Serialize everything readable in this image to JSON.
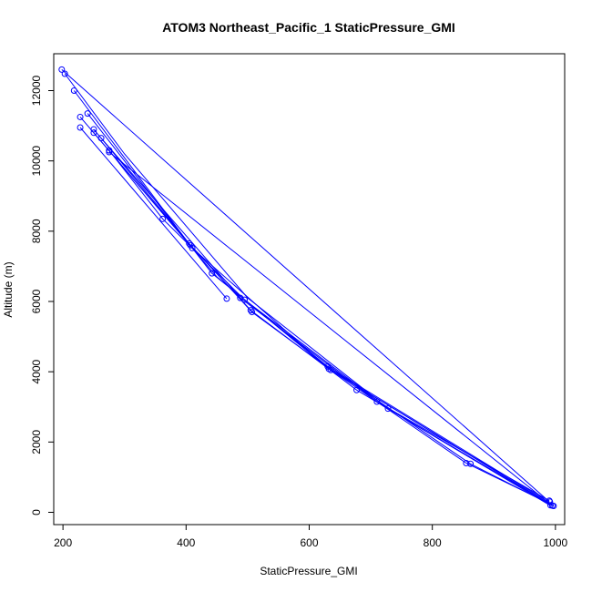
{
  "chart_data": {
    "type": "line",
    "title": "ATOM3 Northeast_Pacific_1 StaticPressure_GMI",
    "xlabel": "StaticPressure_GMI",
    "ylabel": "Altitude (m)",
    "xlim": [
      185,
      1015
    ],
    "ylim": [
      -350,
      13050
    ],
    "xticks": [
      200,
      400,
      600,
      800,
      1000
    ],
    "yticks": [
      0,
      2000,
      4000,
      6000,
      8000,
      10000,
      12000
    ],
    "xtick_labels": [
      "200",
      "400",
      "600",
      "800",
      "1000"
    ],
    "ytick_labels": [
      "0",
      "2000",
      "4000",
      "6000",
      "8000",
      "10000",
      "12000"
    ],
    "grid": false,
    "legend": "none",
    "series_color": "#0000ff",
    "markers": "open-circle",
    "points": [
      {
        "x": 198,
        "y": 12600
      },
      {
        "x": 203,
        "y": 12480
      },
      {
        "x": 218,
        "y": 12000
      },
      {
        "x": 228,
        "y": 11250
      },
      {
        "x": 228,
        "y": 10950
      },
      {
        "x": 240,
        "y": 11350
      },
      {
        "x": 250,
        "y": 10900
      },
      {
        "x": 250,
        "y": 10800
      },
      {
        "x": 262,
        "y": 10650
      },
      {
        "x": 275,
        "y": 10300
      },
      {
        "x": 275,
        "y": 10250
      },
      {
        "x": 362,
        "y": 8350
      },
      {
        "x": 405,
        "y": 7650
      },
      {
        "x": 407,
        "y": 7600
      },
      {
        "x": 410,
        "y": 7520
      },
      {
        "x": 442,
        "y": 6800
      },
      {
        "x": 466,
        "y": 6080
      },
      {
        "x": 488,
        "y": 6100
      },
      {
        "x": 495,
        "y": 6050
      },
      {
        "x": 505,
        "y": 5750
      },
      {
        "x": 507,
        "y": 5700
      },
      {
        "x": 630,
        "y": 4150
      },
      {
        "x": 632,
        "y": 4080
      },
      {
        "x": 635,
        "y": 4050
      },
      {
        "x": 677,
        "y": 3480
      },
      {
        "x": 710,
        "y": 3150
      },
      {
        "x": 728,
        "y": 2950
      },
      {
        "x": 855,
        "y": 1400
      },
      {
        "x": 862,
        "y": 1380
      },
      {
        "x": 990,
        "y": 330
      },
      {
        "x": 991,
        "y": 300
      },
      {
        "x": 992,
        "y": 200
      },
      {
        "x": 995,
        "y": 190
      },
      {
        "x": 997,
        "y": 180
      }
    ],
    "profiles": [
      [
        {
          "x": 203,
          "y": 12480
        },
        {
          "x": 300,
          "y": 10200
        },
        {
          "x": 500,
          "y": 6100
        },
        {
          "x": 700,
          "y": 3350
        },
        {
          "x": 990,
          "y": 250
        }
      ],
      [
        {
          "x": 198,
          "y": 12600
        },
        {
          "x": 990,
          "y": 300
        }
      ],
      [
        {
          "x": 218,
          "y": 12000
        },
        {
          "x": 410,
          "y": 7520
        },
        {
          "x": 632,
          "y": 4080
        },
        {
          "x": 995,
          "y": 190
        }
      ],
      [
        {
          "x": 228,
          "y": 10950
        },
        {
          "x": 466,
          "y": 6080
        }
      ],
      [
        {
          "x": 240,
          "y": 11350
        },
        {
          "x": 442,
          "y": 6800
        },
        {
          "x": 630,
          "y": 4150
        },
        {
          "x": 862,
          "y": 1380
        },
        {
          "x": 997,
          "y": 180
        }
      ],
      [
        {
          "x": 250,
          "y": 10800
        },
        {
          "x": 407,
          "y": 7600
        },
        {
          "x": 505,
          "y": 5750
        },
        {
          "x": 677,
          "y": 3480
        },
        {
          "x": 991,
          "y": 200
        }
      ],
      [
        {
          "x": 262,
          "y": 10650
        },
        {
          "x": 488,
          "y": 6100
        },
        {
          "x": 710,
          "y": 3150
        },
        {
          "x": 990,
          "y": 330
        }
      ],
      [
        {
          "x": 275,
          "y": 10300
        },
        {
          "x": 362,
          "y": 8350
        },
        {
          "x": 495,
          "y": 6050
        },
        {
          "x": 728,
          "y": 2950
        },
        {
          "x": 992,
          "y": 220
        }
      ],
      [
        {
          "x": 250,
          "y": 10900
        },
        {
          "x": 405,
          "y": 7650
        },
        {
          "x": 507,
          "y": 5700
        },
        {
          "x": 635,
          "y": 4050
        },
        {
          "x": 855,
          "y": 1400
        },
        {
          "x": 996,
          "y": 200
        }
      ],
      [
        {
          "x": 275,
          "y": 10250
        },
        {
          "x": 990,
          "y": 260
        }
      ],
      [
        {
          "x": 228,
          "y": 11250
        },
        {
          "x": 450,
          "y": 6700
        },
        {
          "x": 620,
          "y": 4250
        },
        {
          "x": 990,
          "y": 280
        }
      ]
    ]
  }
}
